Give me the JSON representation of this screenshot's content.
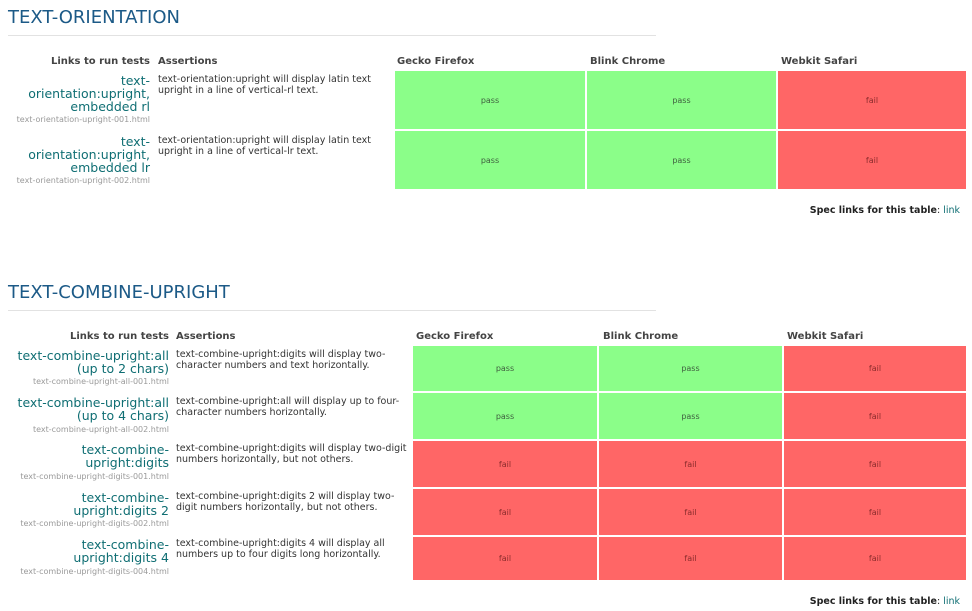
{
  "columns": {
    "links": "Links to run tests",
    "assertions": "Assertions",
    "gecko": "Gecko Firefox",
    "blink": "Blink Chrome",
    "webkit": "Webkit Safari"
  },
  "spec": {
    "label": "Spec links for this table",
    "colon": ":",
    "link": "link"
  },
  "sections": [
    {
      "title": "TEXT-ORIENTATION",
      "rows": [
        {
          "link_lines": [
            "text-",
            "orientation:upright,",
            "embedded rl"
          ],
          "file": "text-orientation-upright-001.html",
          "assertion": "text-orientation:upright will display latin text upright in a line of vertical-rl text.",
          "results": [
            "pass",
            "pass",
            "fail"
          ]
        },
        {
          "link_lines": [
            "text-",
            "orientation:upright,",
            "embedded lr"
          ],
          "file": "text-orientation-upright-002.html",
          "assertion": "text-orientation:upright will display latin text upright in a line of vertical-lr text.",
          "results": [
            "pass",
            "pass",
            "fail"
          ]
        }
      ]
    },
    {
      "title": "TEXT-COMBINE-UPRIGHT",
      "rows": [
        {
          "link_lines": [
            "text-combine-upright:all",
            "(up to 2 chars)"
          ],
          "file": "text-combine-upright-all-001.html",
          "assertion": "text-combine-upright:digits will display two-character numbers and text horizontally.",
          "results": [
            "pass",
            "pass",
            "fail"
          ]
        },
        {
          "link_lines": [
            "text-combine-upright:all",
            "(up to 4 chars)"
          ],
          "file": "text-combine-upright-all-002.html",
          "assertion": "text-combine-upright:all will display up to four-character numbers horizontally.",
          "results": [
            "pass",
            "pass",
            "fail"
          ]
        },
        {
          "link_lines": [
            "text-combine-",
            "upright:digits"
          ],
          "file": "text-combine-upright-digits-001.html",
          "assertion": "text-combine-upright:digits will display two-digit numbers horizontally, but not others.",
          "results": [
            "fail",
            "fail",
            "fail"
          ]
        },
        {
          "link_lines": [
            "text-combine-",
            "upright:digits 2"
          ],
          "file": "text-combine-upright-digits-002.html",
          "assertion": "text-combine-upright:digits 2 will display two-digit numbers horizontally, but not others.",
          "results": [
            "fail",
            "fail",
            "fail"
          ]
        },
        {
          "link_lines": [
            "text-combine-",
            "upright:digits 4"
          ],
          "file": "text-combine-upright-digits-004.html",
          "assertion": "text-combine-upright:digits 4 will display all numbers up to four digits long horizontally.",
          "results": [
            "fail",
            "fail",
            "fail"
          ]
        }
      ]
    }
  ]
}
